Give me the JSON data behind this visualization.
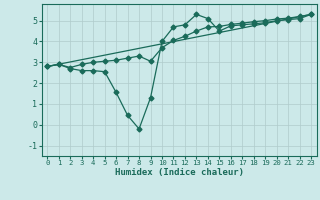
{
  "title": "",
  "xlabel": "Humidex (Indice chaleur)",
  "ylabel": "",
  "background_color": "#cce9e9",
  "grid_color": "#b0cccc",
  "line_color": "#1a6b5a",
  "xlim": [
    -0.5,
    23.5
  ],
  "ylim": [
    -1.5,
    5.8
  ],
  "yticks": [
    -1,
    0,
    1,
    2,
    3,
    4,
    5
  ],
  "xticks": [
    0,
    1,
    2,
    3,
    4,
    5,
    6,
    7,
    8,
    9,
    10,
    11,
    12,
    13,
    14,
    15,
    16,
    17,
    18,
    19,
    20,
    21,
    22,
    23
  ],
  "series1_x": [
    0,
    1,
    2,
    3,
    4,
    5,
    6,
    7,
    8,
    9,
    10,
    11,
    12,
    13,
    14,
    15,
    16,
    17,
    18,
    19,
    20,
    21,
    22,
    23
  ],
  "series1_y": [
    2.8,
    2.9,
    2.7,
    2.6,
    2.6,
    2.55,
    1.55,
    0.45,
    -0.2,
    1.3,
    4.0,
    4.7,
    4.8,
    5.3,
    5.1,
    4.5,
    4.75,
    4.8,
    4.85,
    4.9,
    5.0,
    5.05,
    5.1,
    5.3
  ],
  "series2_x": [
    0,
    1,
    2,
    3,
    4,
    5,
    6,
    7,
    8,
    9,
    10,
    11,
    12,
    13,
    14,
    15,
    16,
    17,
    18,
    19,
    20,
    21,
    22,
    23
  ],
  "series2_y": [
    2.8,
    2.9,
    2.75,
    2.9,
    3.0,
    3.05,
    3.1,
    3.2,
    3.3,
    3.05,
    3.7,
    4.05,
    4.25,
    4.5,
    4.7,
    4.72,
    4.82,
    4.88,
    4.95,
    5.0,
    5.08,
    5.12,
    5.2,
    5.3
  ],
  "series3_x": [
    0,
    23
  ],
  "series3_y": [
    2.8,
    5.3
  ],
  "marker": "D",
  "marker_size": 2.5,
  "linewidth": 0.9
}
